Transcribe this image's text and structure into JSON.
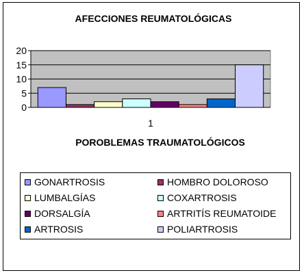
{
  "chart_data": {
    "type": "bar",
    "title": "AFECCIONES REUMATOLÓGICAS",
    "subtitle": "POROBLEMAS TRAUMATOLÓGICOS",
    "categories": [
      "1"
    ],
    "ylim": [
      0,
      20
    ],
    "yticks": [
      0,
      5,
      10,
      15,
      20
    ],
    "grid": true,
    "legend_position": "bottom",
    "series": [
      {
        "name": "GONARTROSIS",
        "values": [
          7
        ],
        "color": "#9999ff"
      },
      {
        "name": "HOMBRO DOLOROSO",
        "values": [
          1
        ],
        "color": "#993366"
      },
      {
        "name": "LUMBALGÍAS",
        "values": [
          2
        ],
        "color": "#ffffcc"
      },
      {
        "name": "COXARTROSIS",
        "values": [
          3
        ],
        "color": "#ccffff"
      },
      {
        "name": "DORSALGÍA",
        "values": [
          2
        ],
        "color": "#660066"
      },
      {
        "name": "ARTRITÍS REUMATOIDE",
        "values": [
          1
        ],
        "color": "#ff8080"
      },
      {
        "name": "ARTROSIS",
        "values": [
          3
        ],
        "color": "#0066cc"
      },
      {
        "name": "POLIARTROSIS",
        "values": [
          15
        ],
        "color": "#ccccff"
      }
    ],
    "plot_background": "#c0c0c0"
  }
}
